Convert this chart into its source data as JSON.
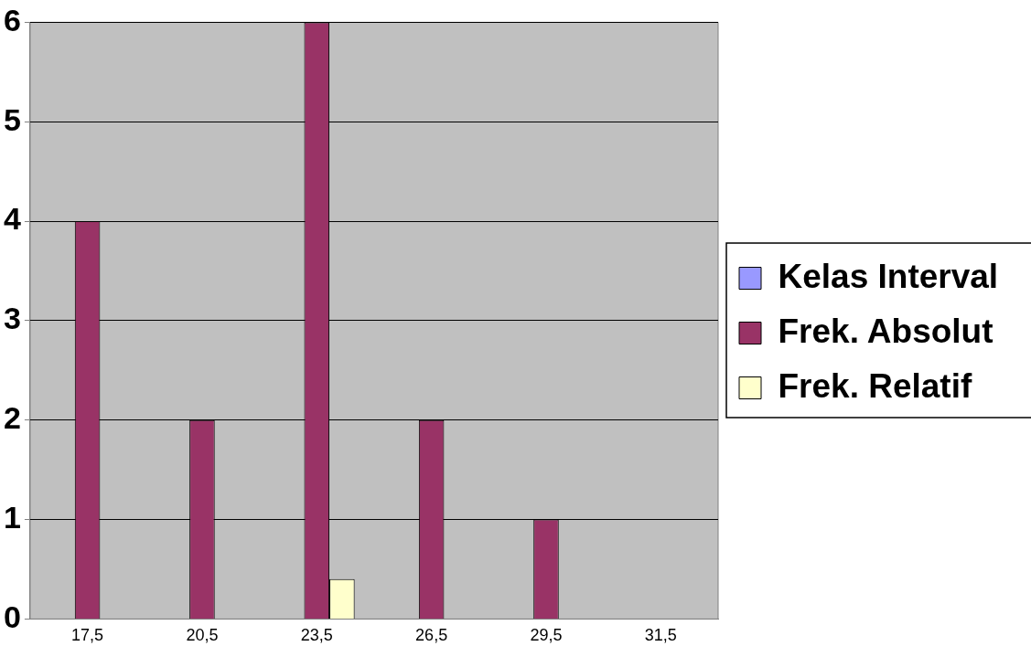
{
  "chart_data": {
    "type": "bar",
    "categories": [
      "17,5",
      "20,5",
      "23,5",
      "26,5",
      "29,5",
      "31,5"
    ],
    "series": [
      {
        "name": "Kelas Interval",
        "color": "#9999ff",
        "values": [
          null,
          null,
          null,
          null,
          null,
          null
        ]
      },
      {
        "name": "Frek. Absolut",
        "color": "#993366",
        "values": [
          4,
          2,
          6,
          2,
          1,
          null
        ]
      },
      {
        "name": "Frek. Relatif",
        "color": "#ffffcc",
        "values": [
          null,
          null,
          0.4,
          null,
          null,
          null
        ]
      }
    ],
    "ylim": [
      0,
      6
    ],
    "yticks": [
      0,
      1,
      2,
      3,
      4,
      5,
      6
    ],
    "grid": "y",
    "legend": "right"
  }
}
